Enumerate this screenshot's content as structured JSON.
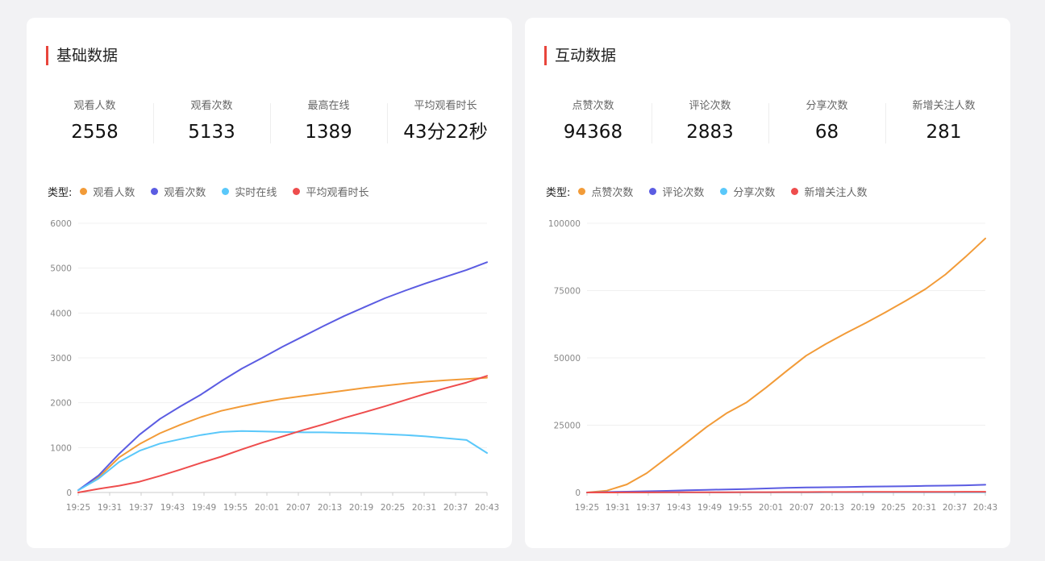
{
  "cards": [
    {
      "title": "基础数据",
      "stats": [
        {
          "label": "观看人数",
          "value": "2558"
        },
        {
          "label": "观看次数",
          "value": "5133"
        },
        {
          "label": "最高在线",
          "value": "1389"
        },
        {
          "label": "平均观看时长",
          "value": "43分22秒"
        }
      ],
      "legend_prefix": "类型:",
      "chart_data": {
        "type": "line",
        "ylim": [
          0,
          6000
        ],
        "yticks": [
          0,
          1000,
          2000,
          3000,
          4000,
          5000,
          6000
        ],
        "ytick_labels": [
          "0",
          "1000",
          "2000",
          "3000",
          "4000",
          "5000",
          "6000"
        ],
        "x_tick_labels": [
          "19:25",
          "19:31",
          "19:37",
          "19:43",
          "19:49",
          "19:55",
          "20:01",
          "20:07",
          "20:13",
          "20:19",
          "20:25",
          "20:31",
          "20:37",
          "20:43"
        ],
        "series": [
          {
            "name": "观看人数",
            "color": "#f29b38",
            "values": [
              50,
              340,
              780,
              1080,
              1320,
              1510,
              1680,
              1820,
              1920,
              2010,
              2090,
              2150,
              2210,
              2270,
              2330,
              2380,
              2430,
              2470,
              2500,
              2530,
              2558
            ]
          },
          {
            "name": "观看次数",
            "color": "#5b5ce2",
            "values": [
              50,
              380,
              860,
              1290,
              1640,
              1920,
              2180,
              2480,
              2760,
              3000,
              3250,
              3480,
              3710,
              3930,
              4130,
              4330,
              4500,
              4660,
              4810,
              4960,
              5133
            ]
          },
          {
            "name": "实时在线",
            "color": "#5ac8fa",
            "values": [
              50,
              310,
              680,
              930,
              1090,
              1190,
              1280,
              1350,
              1370,
              1360,
              1350,
              1340,
              1340,
              1330,
              1320,
              1300,
              1280,
              1250,
              1210,
              1170,
              880
            ]
          },
          {
            "name": "平均观看时长",
            "color": "#ee4d4d",
            "values": [
              0,
              80,
              150,
              240,
              370,
              510,
              660,
              800,
              960,
              1110,
              1250,
              1390,
              1520,
              1660,
              1790,
              1920,
              2060,
              2200,
              2330,
              2450,
              2600
            ]
          }
        ]
      }
    },
    {
      "title": "互动数据",
      "stats": [
        {
          "label": "点赞次数",
          "value": "94368"
        },
        {
          "label": "评论次数",
          "value": "2883"
        },
        {
          "label": "分享次数",
          "value": "68"
        },
        {
          "label": "新增关注人数",
          "value": "281"
        }
      ],
      "legend_prefix": "类型:",
      "chart_data": {
        "type": "line",
        "ylim": [
          0,
          100000
        ],
        "yticks": [
          0,
          25000,
          50000,
          75000,
          100000
        ],
        "ytick_labels": [
          "0",
          "25000",
          "50000",
          "75000",
          "100000"
        ],
        "x_tick_labels": [
          "19:25",
          "19:31",
          "19:37",
          "19:43",
          "19:49",
          "19:55",
          "20:01",
          "20:07",
          "20:13",
          "20:19",
          "20:25",
          "20:31",
          "20:37",
          "20:43"
        ],
        "series": [
          {
            "name": "点赞次数",
            "color": "#f29b38",
            "values": [
              0,
              700,
              3000,
              7200,
              12800,
              18500,
              24300,
              29400,
              33400,
              39000,
              45000,
              50800,
              55200,
              59200,
              63000,
              67000,
              71200,
              75600,
              81000,
              87500,
              94368
            ]
          },
          {
            "name": "评论次数",
            "color": "#5b5ce2",
            "values": [
              0,
              150,
              300,
              450,
              600,
              800,
              1000,
              1150,
              1300,
              1500,
              1700,
              1850,
              1950,
              2050,
              2150,
              2250,
              2350,
              2450,
              2550,
              2650,
              2883
            ]
          },
          {
            "name": "分享次数",
            "color": "#5ac8fa",
            "values": [
              0,
              4,
              8,
              12,
              16,
              20,
              24,
              28,
              32,
              36,
              40,
              44,
              47,
              50,
              53,
              56,
              59,
              62,
              64,
              66,
              68
            ]
          },
          {
            "name": "新增关注人数",
            "color": "#ee4d4d",
            "values": [
              0,
              14,
              28,
              42,
              56,
              70,
              84,
              98,
              112,
              126,
              140,
              154,
              168,
              182,
              196,
              210,
              224,
              238,
              252,
              266,
              281
            ]
          }
        ]
      }
    }
  ]
}
